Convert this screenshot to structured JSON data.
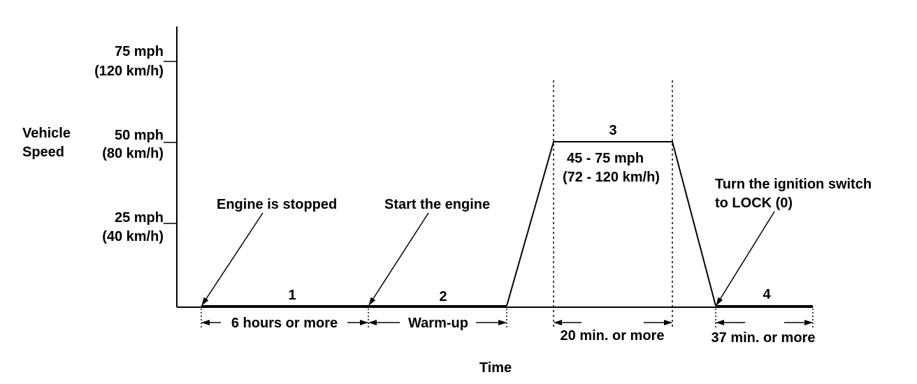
{
  "y_axis": {
    "title_line1": "Vehicle",
    "title_line2": "Speed",
    "ticks": [
      {
        "mph": "75 mph",
        "kmh": "(120 km/h)"
      },
      {
        "mph": "50 mph",
        "kmh": "(80 km/h)"
      },
      {
        "mph": "25 mph",
        "kmh": "(40 km/h)"
      }
    ]
  },
  "x_axis": {
    "title": "Time"
  },
  "phases": {
    "p1": "1",
    "p2": "2",
    "p3": "3",
    "p4": "4"
  },
  "speed_range": {
    "line1": "45 - 75 mph",
    "line2": "(72 - 120 km/h)"
  },
  "annotations": {
    "engine_stopped": "Engine is stopped",
    "start_engine": "Start the engine",
    "ignition_line1": "Turn the ignition switch",
    "ignition_line2": "to LOCK (0)"
  },
  "durations": {
    "d1": "6 hours or more",
    "d2": "Warm-up",
    "d3": "20 min. or more",
    "d4": "37 min. or more"
  }
}
